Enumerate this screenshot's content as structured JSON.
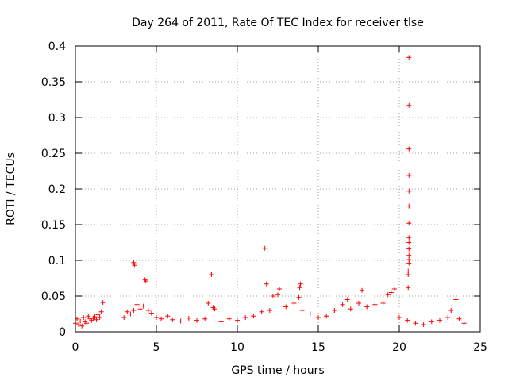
{
  "chart_data": {
    "type": "scatter",
    "title": "Day 264 of 2011, Rate Of TEC Index for receiver tlse",
    "xlabel": "GPS time / hours",
    "ylabel": "ROTI / TECUs",
    "xlim": [
      0,
      25
    ],
    "ylim": [
      0,
      0.4
    ],
    "x_ticks": [
      "0",
      "5",
      "10",
      "15",
      "20",
      "25"
    ],
    "y_ticks": [
      "0",
      "0.05",
      "0.1",
      "0.15",
      "0.2",
      "0.25",
      "0.3",
      "0.35",
      "0.4"
    ],
    "grid": true,
    "legend": "none",
    "marker": "+",
    "color": "#ff0000",
    "series": [
      {
        "points": [
          [
            0.0,
            0.012
          ],
          [
            0.1,
            0.018
          ],
          [
            0.2,
            0.01
          ],
          [
            0.3,
            0.015
          ],
          [
            0.4,
            0.008
          ],
          [
            0.5,
            0.02
          ],
          [
            0.6,
            0.014
          ],
          [
            0.7,
            0.012
          ],
          [
            0.8,
            0.022
          ],
          [
            0.9,
            0.018
          ],
          [
            1.0,
            0.016
          ],
          [
            1.1,
            0.019
          ],
          [
            1.2,
            0.021
          ],
          [
            1.3,
            0.017
          ],
          [
            1.4,
            0.024
          ],
          [
            1.5,
            0.02
          ],
          [
            1.6,
            0.028
          ],
          [
            1.7,
            0.041
          ],
          [
            3.0,
            0.02
          ],
          [
            3.2,
            0.028
          ],
          [
            3.4,
            0.025
          ],
          [
            3.6,
            0.03
          ],
          [
            3.6,
            0.097
          ],
          [
            3.65,
            0.093
          ],
          [
            3.8,
            0.038
          ],
          [
            4.0,
            0.032
          ],
          [
            4.2,
            0.036
          ],
          [
            4.3,
            0.073
          ],
          [
            4.35,
            0.071
          ],
          [
            4.5,
            0.03
          ],
          [
            4.7,
            0.026
          ],
          [
            5.0,
            0.02
          ],
          [
            5.3,
            0.018
          ],
          [
            5.7,
            0.022
          ],
          [
            6.0,
            0.017
          ],
          [
            6.5,
            0.015
          ],
          [
            7.0,
            0.019
          ],
          [
            7.5,
            0.016
          ],
          [
            8.0,
            0.018
          ],
          [
            8.2,
            0.04
          ],
          [
            8.4,
            0.08
          ],
          [
            8.5,
            0.034
          ],
          [
            8.6,
            0.032
          ],
          [
            9.0,
            0.014
          ],
          [
            9.5,
            0.018
          ],
          [
            10.0,
            0.016
          ],
          [
            10.5,
            0.02
          ],
          [
            11.0,
            0.022
          ],
          [
            11.5,
            0.028
          ],
          [
            11.7,
            0.117
          ],
          [
            11.8,
            0.067
          ],
          [
            12.0,
            0.03
          ],
          [
            12.2,
            0.05
          ],
          [
            12.5,
            0.052
          ],
          [
            12.6,
            0.06
          ],
          [
            13.0,
            0.035
          ],
          [
            13.5,
            0.04
          ],
          [
            13.8,
            0.048
          ],
          [
            13.85,
            0.062
          ],
          [
            13.9,
            0.067
          ],
          [
            14.0,
            0.03
          ],
          [
            14.5,
            0.025
          ],
          [
            15.0,
            0.02
          ],
          [
            15.5,
            0.022
          ],
          [
            16.0,
            0.03
          ],
          [
            16.5,
            0.038
          ],
          [
            16.8,
            0.045
          ],
          [
            17.0,
            0.032
          ],
          [
            17.5,
            0.04
          ],
          [
            17.7,
            0.058
          ],
          [
            18.0,
            0.035
          ],
          [
            18.5,
            0.038
          ],
          [
            19.0,
            0.04
          ],
          [
            19.3,
            0.052
          ],
          [
            19.5,
            0.055
          ],
          [
            19.7,
            0.06
          ],
          [
            20.0,
            0.02
          ],
          [
            20.5,
            0.016
          ],
          [
            20.55,
            0.062
          ],
          [
            20.55,
            0.08
          ],
          [
            20.55,
            0.085
          ],
          [
            20.6,
            0.096
          ],
          [
            20.6,
            0.101
          ],
          [
            20.6,
            0.107
          ],
          [
            20.6,
            0.116
          ],
          [
            20.6,
            0.125
          ],
          [
            20.6,
            0.132
          ],
          [
            20.6,
            0.152
          ],
          [
            20.6,
            0.176
          ],
          [
            20.6,
            0.197
          ],
          [
            20.6,
            0.219
          ],
          [
            20.6,
            0.256
          ],
          [
            20.6,
            0.317
          ],
          [
            20.6,
            0.384
          ],
          [
            21.0,
            0.012
          ],
          [
            21.5,
            0.01
          ],
          [
            22.0,
            0.014
          ],
          [
            22.5,
            0.016
          ],
          [
            23.0,
            0.02
          ],
          [
            23.2,
            0.03
          ],
          [
            23.5,
            0.045
          ],
          [
            23.7,
            0.018
          ],
          [
            24.0,
            0.012
          ]
        ]
      }
    ]
  }
}
